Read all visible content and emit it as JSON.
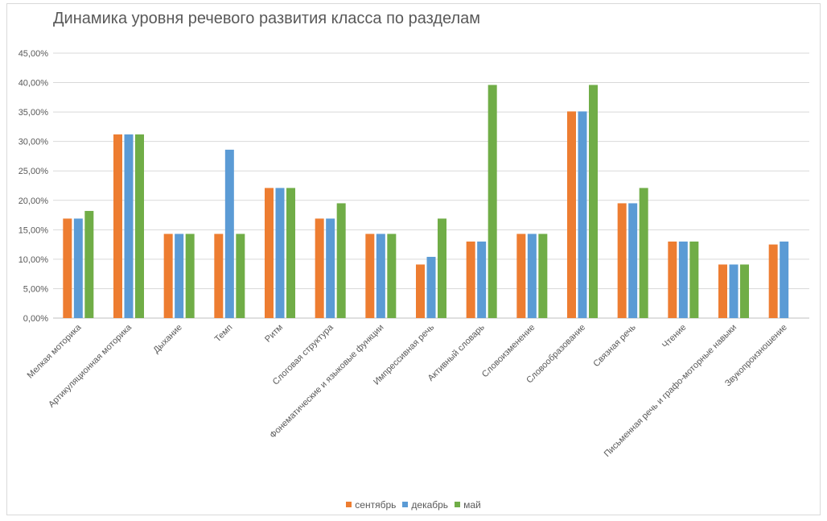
{
  "chart_data": {
    "type": "bar",
    "title": "Динамика уровня речевого развития класса по разделам",
    "xlabel": "",
    "ylabel": "",
    "ylim": [
      0,
      45
    ],
    "y_ticks": [
      "0,00%",
      "5,00%",
      "10,00%",
      "15,00%",
      "20,00%",
      "25,00%",
      "30,00%",
      "35,00%",
      "40,00%",
      "45,00%"
    ],
    "grid": true,
    "legend_position": "bottom",
    "categories": [
      "Мелкая моторика",
      "Артикуляционная моторика",
      "Дыхание",
      "Темп",
      "Ритм",
      "Слоговая структура",
      "Фонематические и языковые функции",
      "Импрессивная речь",
      "Активный словарь",
      "Словоизменение",
      "Словообразование",
      "Связная речь",
      "Чтение",
      "Письменная речь и графо-моторные навыки",
      "Звукопроизношение"
    ],
    "series": [
      {
        "name": "сентябрь",
        "color": "#ed7d31",
        "values": [
          16.9,
          31.2,
          14.3,
          14.3,
          22.1,
          16.9,
          14.3,
          9.1,
          13.0,
          14.3,
          35.1,
          19.5,
          13.0,
          9.1,
          12.5
        ]
      },
      {
        "name": "декабрь",
        "color": "#5b9bd5",
        "values": [
          16.9,
          31.2,
          14.3,
          28.6,
          22.1,
          16.9,
          14.3,
          10.4,
          13.0,
          14.3,
          35.1,
          19.5,
          13.0,
          9.1,
          13.0
        ]
      },
      {
        "name": "май",
        "color": "#70ad47",
        "values": [
          18.2,
          31.2,
          14.3,
          14.3,
          22.1,
          19.5,
          14.3,
          16.9,
          39.6,
          14.3,
          39.6,
          22.1,
          13.0,
          9.1,
          null
        ]
      }
    ]
  }
}
